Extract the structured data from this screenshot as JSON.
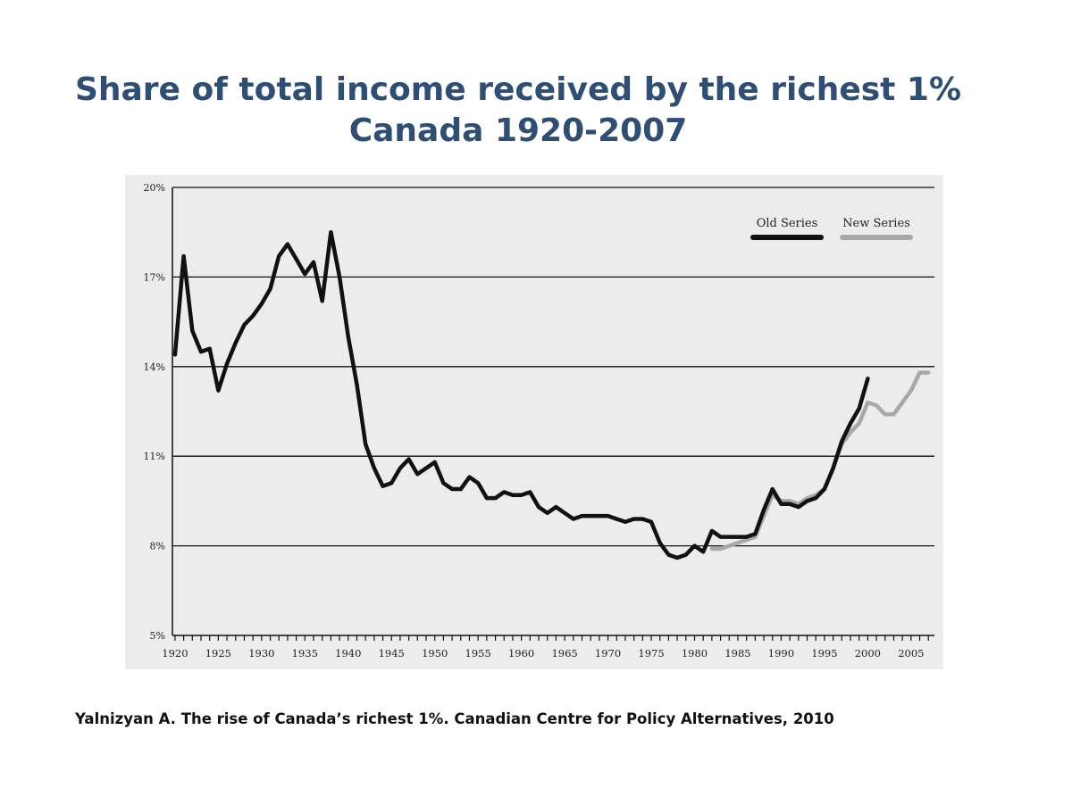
{
  "header": {
    "title_line1": "Share of total income received by the richest 1%",
    "title_line2": "Canada 1920-2007"
  },
  "citation": "Yalnizyan A.  The rise of Canada’s richest 1%.  Canadian Centre for Policy Alternatives, 2010",
  "colors": {
    "title": "#2e4e73",
    "plot_bg": "#ececec",
    "old_series": "#111111",
    "new_series": "#a8a8a8",
    "grid": "#111111"
  },
  "chart_data": {
    "type": "line",
    "title": "Share of total income received by the richest 1% Canada 1920-2007",
    "xlabel": "",
    "ylabel": "",
    "xlim": [
      1919.7,
      2007.7
    ],
    "ylim": [
      5,
      20
    ],
    "grid": true,
    "legend_position": "top-right",
    "y_ticks": [
      {
        "value": 5,
        "label": "5%"
      },
      {
        "value": 8,
        "label": "8%"
      },
      {
        "value": 11,
        "label": "11%"
      },
      {
        "value": 14,
        "label": "14%"
      },
      {
        "value": 17,
        "label": "17%"
      },
      {
        "value": 20,
        "label": "20%"
      }
    ],
    "x_tick_labels": [
      {
        "value": 1920,
        "label": "1920"
      },
      {
        "value": 1925,
        "label": "1925"
      },
      {
        "value": 1930,
        "label": "1930"
      },
      {
        "value": 1935,
        "label": "1935"
      },
      {
        "value": 1940,
        "label": "1940"
      },
      {
        "value": 1945,
        "label": "1945"
      },
      {
        "value": 1950,
        "label": "1950"
      },
      {
        "value": 1955,
        "label": "1955"
      },
      {
        "value": 1960,
        "label": "1960"
      },
      {
        "value": 1965,
        "label": "1965"
      },
      {
        "value": 1970,
        "label": "1970"
      },
      {
        "value": 1975,
        "label": "1975"
      },
      {
        "value": 1980,
        "label": "1980"
      },
      {
        "value": 1985,
        "label": "1985"
      },
      {
        "value": 1990,
        "label": "1990"
      },
      {
        "value": 1995,
        "label": "1995"
      },
      {
        "value": 2000,
        "label": "2000"
      },
      {
        "value": 2005,
        "label": "2005"
      }
    ],
    "series": [
      {
        "name": "Old Series",
        "color": "#111111",
        "x": [
          1920,
          1921,
          1922,
          1923,
          1924,
          1925,
          1926,
          1927,
          1928,
          1929,
          1930,
          1931,
          1932,
          1933,
          1934,
          1935,
          1936,
          1937,
          1938,
          1939,
          1940,
          1941,
          1942,
          1943,
          1944,
          1945,
          1946,
          1947,
          1948,
          1949,
          1950,
          1951,
          1952,
          1953,
          1954,
          1955,
          1956,
          1957,
          1958,
          1959,
          1960,
          1961,
          1962,
          1963,
          1964,
          1965,
          1966,
          1967,
          1968,
          1969,
          1970,
          1971,
          1972,
          1973,
          1974,
          1975,
          1976,
          1977,
          1978,
          1979,
          1980,
          1981,
          1982,
          1983,
          1984,
          1985,
          1986,
          1987,
          1988,
          1989,
          1990,
          1991,
          1992,
          1993,
          1994,
          1995,
          1996,
          1997,
          1998,
          1999,
          2000
        ],
        "values": [
          14.4,
          17.7,
          15.2,
          14.5,
          14.6,
          13.2,
          14.1,
          14.8,
          15.4,
          15.7,
          16.1,
          16.6,
          17.7,
          18.1,
          17.6,
          17.1,
          17.5,
          16.2,
          18.5,
          17.0,
          15.0,
          13.4,
          11.4,
          10.6,
          10.0,
          10.1,
          10.6,
          10.9,
          10.4,
          10.6,
          10.8,
          10.1,
          9.9,
          9.9,
          10.3,
          10.1,
          9.6,
          9.6,
          9.8,
          9.7,
          9.7,
          9.8,
          9.3,
          9.1,
          9.3,
          9.1,
          8.9,
          9.0,
          9.0,
          9.0,
          9.0,
          8.9,
          8.8,
          8.9,
          8.9,
          8.8,
          8.1,
          7.7,
          7.6,
          7.7,
          8.0,
          7.8,
          8.5,
          8.3,
          8.3,
          8.3,
          8.3,
          8.4,
          9.2,
          9.9,
          9.4,
          9.4,
          9.3,
          9.5,
          9.6,
          9.9,
          10.6,
          11.5,
          12.1,
          12.6,
          13.6
        ]
      },
      {
        "name": "New Series",
        "color": "#a8a8a8",
        "x": [
          1982,
          1983,
          1984,
          1985,
          1986,
          1987,
          1988,
          1989,
          1990,
          1991,
          1992,
          1993,
          1994,
          1995,
          1996,
          1997,
          1998,
          1999,
          2000,
          2001,
          2002,
          2003,
          2004,
          2005,
          2006,
          2007
        ],
        "values": [
          7.9,
          7.9,
          8.0,
          8.1,
          8.2,
          8.3,
          9.0,
          9.7,
          9.5,
          9.5,
          9.4,
          9.6,
          9.7,
          9.9,
          10.6,
          11.4,
          11.8,
          12.1,
          12.8,
          12.7,
          12.4,
          12.4,
          12.8,
          13.2,
          13.8,
          13.8
        ]
      }
    ]
  }
}
